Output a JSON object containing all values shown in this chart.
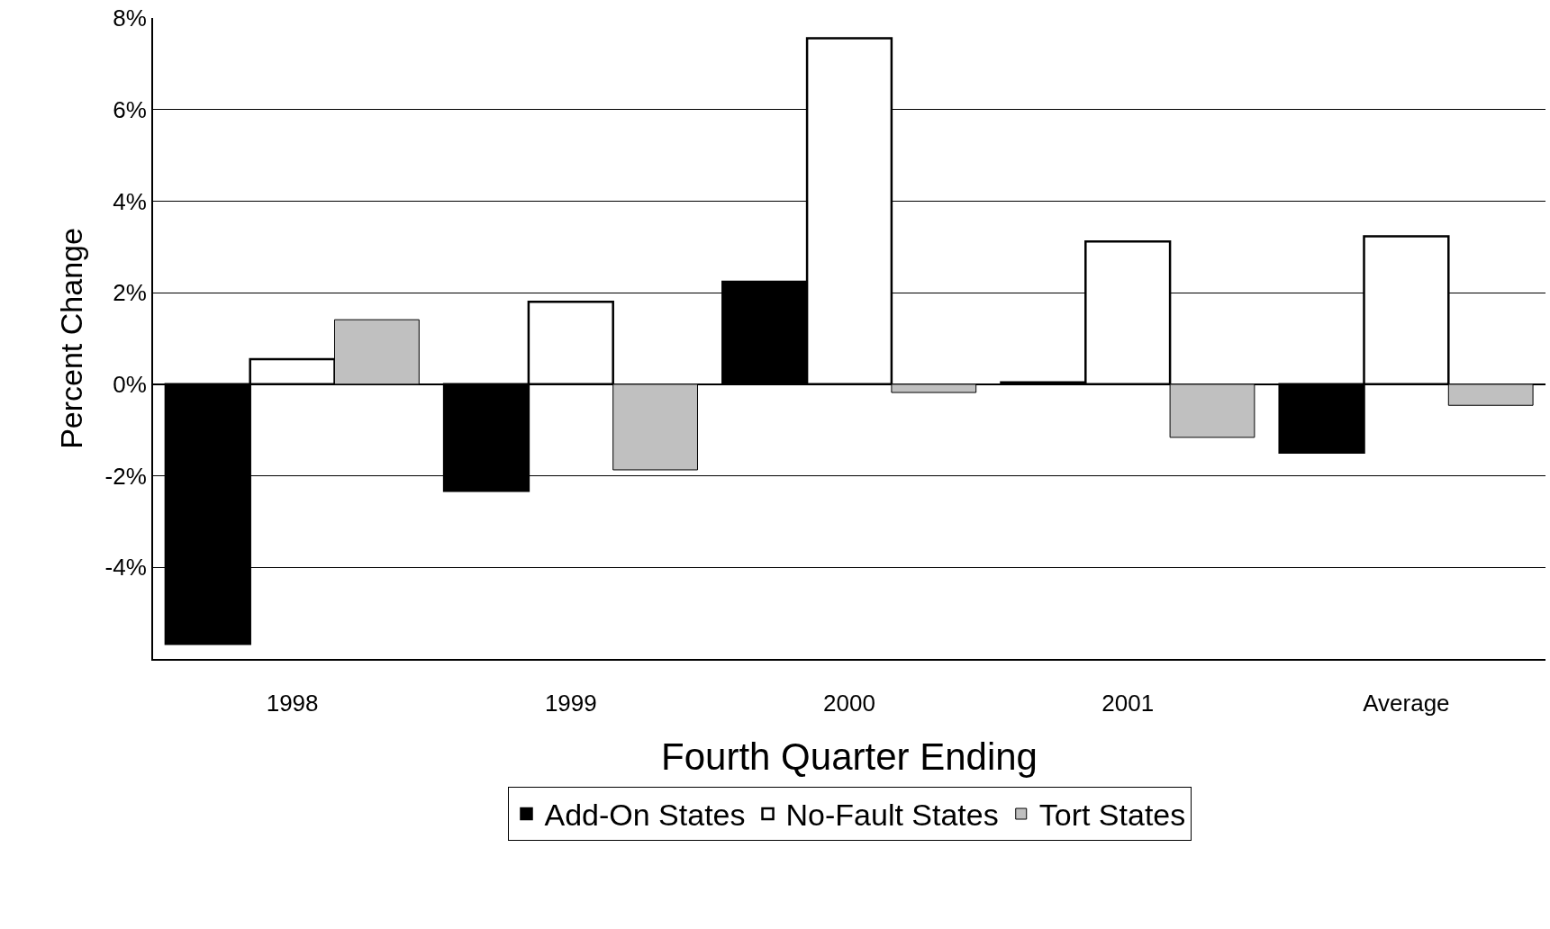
{
  "chart_data": {
    "type": "bar",
    "xlabel": "Fourth Quarter Ending",
    "ylabel": "Percent Change",
    "categories": [
      "1998",
      "1999",
      "2000",
      "2001",
      "Average"
    ],
    "series": [
      {
        "name": "Add-On States",
        "color": "#000000",
        "values": [
          -5.67,
          -2.33,
          2.24,
          0.04,
          -1.49
        ]
      },
      {
        "name": "No-Fault States",
        "color": "#ffffff",
        "values": [
          0.55,
          1.8,
          7.56,
          3.12,
          3.23
        ]
      },
      {
        "name": "Tort States",
        "color": "#c0c0c0",
        "values": [
          1.41,
          -1.87,
          -0.18,
          -1.16,
          -0.46
        ]
      }
    ],
    "ylim": [
      -6,
      8
    ],
    "yticks": [
      {
        "value": -4,
        "label": "-4%"
      },
      {
        "value": -2,
        "label": "-2%"
      },
      {
        "value": 0,
        "label": "0%"
      },
      {
        "value": 2,
        "label": "2%"
      },
      {
        "value": 4,
        "label": "4%"
      },
      {
        "value": 6,
        "label": "6%"
      },
      {
        "value": 8,
        "label": "8%"
      }
    ],
    "grid": "y",
    "legend": "bottom"
  }
}
